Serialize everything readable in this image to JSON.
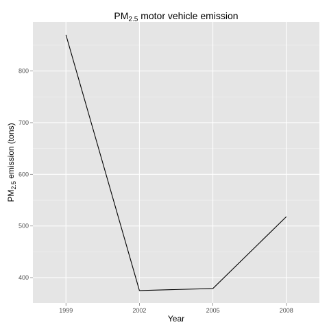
{
  "chart_data": {
    "type": "line",
    "title": {
      "main": "PM",
      "sub": "2.5",
      "rest": " motor vehicle emission"
    },
    "xlabel": "Year",
    "ylabel": {
      "main": "PM",
      "sub": "2.5",
      "rest": " emission (tons)"
    },
    "x": [
      1999,
      2002,
      2005,
      2008
    ],
    "x_tick_labels": [
      "1999",
      "2002",
      "2005",
      "2008"
    ],
    "series": [
      {
        "values": [
          870,
          375,
          379,
          518
        ]
      }
    ],
    "xlim": [
      1997.65,
      2009.35
    ],
    "ylim": [
      351,
      895
    ],
    "y_ticks": [
      400,
      500,
      600,
      700,
      800
    ],
    "y_tick_labels": [
      "400",
      "500",
      "600",
      "700",
      "800"
    ],
    "grid": true,
    "colors": {
      "panel": "#e5e5e5",
      "grid_major": "#ffffff",
      "grid_minor": "#f2f2f2",
      "line": "#000000"
    }
  }
}
